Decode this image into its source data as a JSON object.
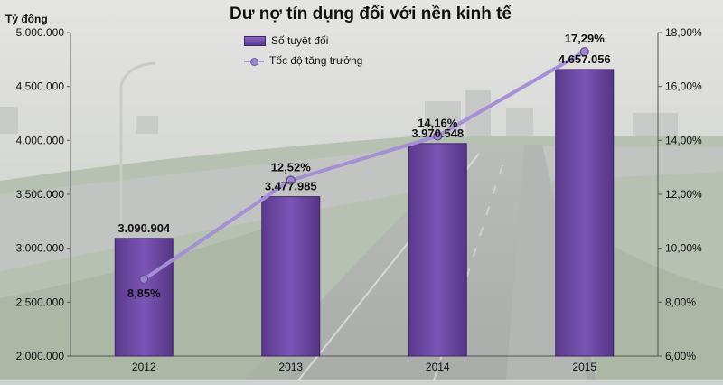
{
  "title": "Dư nợ tín dụng đối với nền kinh tế",
  "y_unit_label": "Tỷ đông",
  "legend": {
    "bar_label": "Số tuyệt đối",
    "line_label": "Tốc độ tăng trưởng"
  },
  "colors": {
    "bar": "#6b46a3",
    "bar_light": "#8d69c4",
    "line": "#a58fd6",
    "marker": "#9d88cf"
  },
  "chart_data": {
    "type": "bar",
    "categories": [
      "2012",
      "2013",
      "2014",
      "2015"
    ],
    "series": [
      {
        "name": "Số tuyệt đối",
        "type": "bar",
        "axis": "left",
        "values": [
          3090904,
          3477985,
          3970548,
          4657056
        ],
        "labels": [
          "3.090.904",
          "3.477.985",
          "3.970.548",
          "4.657.056"
        ]
      },
      {
        "name": "Tốc độ tăng trưởng",
        "type": "line",
        "axis": "right",
        "values": [
          8.85,
          12.52,
          14.16,
          17.29
        ],
        "labels": [
          "8,85%",
          "12,52%",
          "14,16%",
          "17,29%"
        ]
      }
    ],
    "y_left": {
      "min": 2000000,
      "max": 5000000,
      "ticks": [
        2000000,
        2500000,
        3000000,
        3500000,
        4000000,
        4500000,
        5000000
      ],
      "tick_labels": [
        "2.000.000",
        "2.500.000",
        "3.000.000",
        "3.500.000",
        "4.000.000",
        "4.500.000",
        "5.000.000"
      ]
    },
    "y_right": {
      "min": 6,
      "max": 18,
      "ticks": [
        6,
        8,
        10,
        12,
        14,
        16,
        18
      ],
      "tick_labels": [
        "6,00%",
        "8,00%",
        "10,00%",
        "12,00%",
        "14,00%",
        "16,00%",
        "18,00%"
      ]
    },
    "grid": false,
    "legend_position": "top-center"
  }
}
